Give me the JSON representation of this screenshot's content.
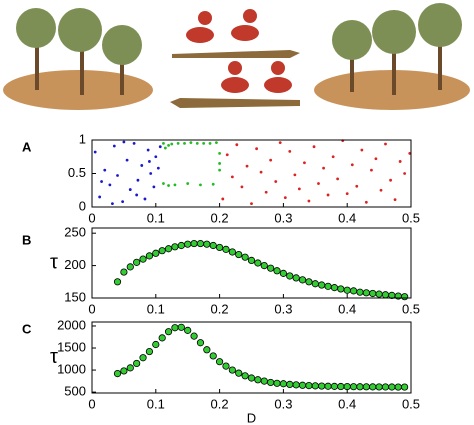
{
  "chart_data": [
    {
      "type": "scatter",
      "label": "A",
      "xlim": [
        0,
        0.5
      ],
      "ylim": [
        0,
        1
      ],
      "xticks": [
        0,
        0.1,
        0.2,
        0.3,
        0.4,
        0.5
      ],
      "yticks": [
        0,
        0.5,
        1
      ],
      "series": [
        {
          "color": "#1a1acc",
          "x": [
            0.005,
            0.012,
            0.02,
            0.028,
            0.035,
            0.04,
            0.048,
            0.055,
            0.06,
            0.066,
            0.072,
            0.078,
            0.083,
            0.088,
            0.092,
            0.097,
            0.1,
            0.104,
            0.015,
            0.032,
            0.05,
            0.07,
            0.09,
            0.107
          ],
          "y": [
            0.82,
            0.15,
            0.55,
            0.33,
            0.91,
            0.47,
            0.08,
            0.7,
            0.26,
            0.95,
            0.4,
            0.62,
            0.12,
            0.85,
            0.5,
            0.3,
            0.75,
            0.58,
            0.38,
            0.05,
            0.97,
            0.18,
            0.68,
            0.9
          ]
        },
        {
          "color": "#22bb22",
          "x": [
            0.112,
            0.115,
            0.12,
            0.125,
            0.135,
            0.145,
            0.155,
            0.165,
            0.175,
            0.185,
            0.195,
            0.112,
            0.12,
            0.13,
            0.15,
            0.17,
            0.19,
            0.2,
            0.2,
            0.2
          ],
          "y": [
            0.95,
            0.88,
            0.92,
            0.94,
            0.95,
            0.95,
            0.96,
            0.95,
            0.95,
            0.95,
            0.96,
            0.35,
            0.32,
            0.33,
            0.35,
            0.33,
            0.34,
            0.65,
            0.8,
            0.55
          ]
        },
        {
          "color": "#dd2222",
          "x": [
            0.205,
            0.212,
            0.22,
            0.227,
            0.235,
            0.243,
            0.25,
            0.258,
            0.265,
            0.273,
            0.28,
            0.288,
            0.295,
            0.303,
            0.31,
            0.318,
            0.325,
            0.333,
            0.34,
            0.348,
            0.355,
            0.363,
            0.37,
            0.378,
            0.385,
            0.393,
            0.4,
            0.408,
            0.415,
            0.423,
            0.43,
            0.438,
            0.445,
            0.453,
            0.46,
            0.468,
            0.475,
            0.483,
            0.49,
            0.498
          ],
          "y": [
            0.12,
            0.78,
            0.45,
            0.93,
            0.3,
            0.61,
            0.05,
            0.87,
            0.52,
            0.22,
            0.7,
            0.38,
            0.96,
            0.14,
            0.83,
            0.48,
            0.27,
            0.66,
            0.09,
            0.9,
            0.35,
            0.58,
            0.18,
            0.75,
            0.42,
            0.99,
            0.2,
            0.63,
            0.31,
            0.85,
            0.07,
            0.55,
            0.72,
            0.25,
            0.94,
            0.4,
            0.11,
            0.68,
            0.5,
            0.8
          ]
        }
      ]
    },
    {
      "type": "scatter",
      "label": "B",
      "ylabel": "τ",
      "color": "#33cc33",
      "xlim": [
        0,
        0.5
      ],
      "ylim": [
        150,
        258
      ],
      "xticks": [
        0,
        0.1,
        0.2,
        0.3,
        0.4,
        0.5
      ],
      "yticks": [
        150,
        200,
        250
      ],
      "x": [
        0.04,
        0.05,
        0.06,
        0.07,
        0.08,
        0.09,
        0.1,
        0.11,
        0.12,
        0.13,
        0.14,
        0.15,
        0.16,
        0.17,
        0.18,
        0.19,
        0.2,
        0.21,
        0.22,
        0.23,
        0.24,
        0.25,
        0.26,
        0.27,
        0.28,
        0.29,
        0.3,
        0.31,
        0.32,
        0.33,
        0.34,
        0.35,
        0.36,
        0.37,
        0.38,
        0.39,
        0.4,
        0.41,
        0.42,
        0.43,
        0.44,
        0.45,
        0.46,
        0.47,
        0.48,
        0.49
      ],
      "values": [
        175,
        190,
        198,
        205,
        210,
        215,
        219,
        223,
        226,
        229,
        231,
        233,
        234,
        234,
        233,
        231,
        228,
        225,
        221,
        217,
        213,
        208,
        204,
        200,
        196,
        192,
        188,
        184,
        181,
        178,
        175,
        172,
        170,
        168,
        166,
        164,
        162,
        161,
        159,
        158,
        157,
        156,
        155,
        154,
        153,
        152
      ]
    },
    {
      "type": "scatter",
      "label": "C",
      "ylabel": "τ",
      "xlabel": "D",
      "color": "#33cc33",
      "xlim": [
        0,
        0.5
      ],
      "ylim": [
        480,
        2090
      ],
      "xticks": [
        0,
        0.1,
        0.2,
        0.3,
        0.4,
        0.5
      ],
      "yticks": [
        500,
        1000,
        1500,
        2000
      ],
      "x": [
        0.04,
        0.05,
        0.06,
        0.07,
        0.08,
        0.09,
        0.1,
        0.11,
        0.12,
        0.13,
        0.14,
        0.15,
        0.16,
        0.17,
        0.18,
        0.19,
        0.2,
        0.21,
        0.22,
        0.23,
        0.24,
        0.25,
        0.26,
        0.27,
        0.28,
        0.29,
        0.3,
        0.31,
        0.32,
        0.33,
        0.34,
        0.35,
        0.36,
        0.37,
        0.38,
        0.39,
        0.4,
        0.41,
        0.42,
        0.43,
        0.44,
        0.45,
        0.46,
        0.47,
        0.48,
        0.49
      ],
      "values": [
        920,
        980,
        1050,
        1150,
        1280,
        1420,
        1580,
        1730,
        1870,
        1960,
        1970,
        1900,
        1770,
        1620,
        1460,
        1320,
        1190,
        1090,
        1000,
        930,
        870,
        820,
        780,
        750,
        720,
        700,
        690,
        675,
        665,
        655,
        648,
        642,
        637,
        633,
        630,
        627,
        625,
        623,
        621,
        620,
        619,
        618,
        617,
        616,
        615,
        615
      ]
    }
  ]
}
